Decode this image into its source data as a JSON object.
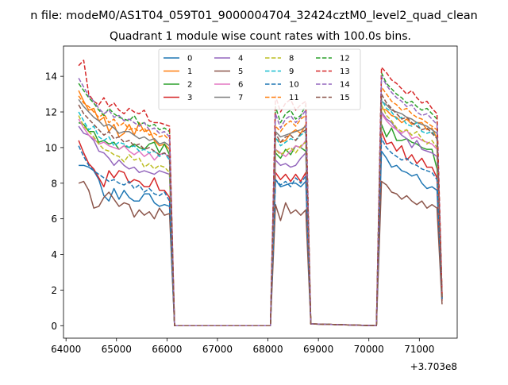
{
  "chart_data": {
    "type": "line",
    "suptitle": "n file: modeM0/AS1T04_059T01_9000004704_32424cztM0_level2_quad_clean",
    "title": "Quadrant 1 module wise count rates with 100.0s bins.",
    "xlabel": "",
    "ylabel": "",
    "x_offset_label": "+3.703e8",
    "xlim": [
      63950,
      71750
    ],
    "ylim": [
      -0.7,
      15.7
    ],
    "x_ticks": [
      64000,
      65000,
      66000,
      67000,
      68000,
      69000,
      70000,
      71000
    ],
    "x_tick_labels": [
      "64000",
      "65000",
      "66000",
      "67000",
      "68000",
      "69000",
      "70000",
      "71000"
    ],
    "y_ticks": [
      0,
      2,
      4,
      6,
      8,
      10,
      12,
      14
    ],
    "y_tick_labels": [
      "0",
      "2",
      "4",
      "6",
      "8",
      "10",
      "12",
      "14"
    ],
    "legend_position": "upper center",
    "segments": {
      "seg1": {
        "start": 64250,
        "end": 66050,
        "step": 100
      },
      "seg2": {
        "start": 68150,
        "end": 68750,
        "step": 100
      },
      "seg3": {
        "start": 70250,
        "end": 71350,
        "step": 100
      },
      "gaps": [
        {
          "x": [
            66150,
            68050
          ],
          "y": [
            0,
            0
          ]
        },
        {
          "x": [
            68850,
            70150
          ],
          "y": [
            0.1,
            0
          ]
        }
      ],
      "tail_x": 71450
    },
    "series": [
      {
        "name": "0",
        "style": "solid",
        "color": "#1f77b4",
        "seg1": [
          9.0,
          9.0,
          8.9,
          8.7,
          8.2,
          7.3,
          7.0,
          7.7,
          7.1,
          7.6,
          7.2,
          7.0,
          7.0,
          7.4,
          7.4,
          6.9,
          6.7,
          6.8,
          6.7
        ],
        "seg2": [
          8.2,
          7.8,
          7.9,
          8.0,
          8.0,
          7.8,
          8.1
        ],
        "seg3": [
          9.8,
          9.4,
          8.9,
          9.0,
          8.7,
          8.6,
          8.4,
          8.5,
          8.0,
          7.7,
          7.8,
          7.6
        ],
        "tail": 1.5
      },
      {
        "name": "1",
        "style": "solid",
        "color": "#ff7f0e",
        "seg1": [
          13.2,
          12.6,
          12.1,
          12.2,
          11.5,
          11.7,
          10.9,
          11.3,
          10.6,
          10.8,
          11.3,
          10.7,
          11.4,
          10.9,
          11.0,
          10.4,
          10.1,
          10.2,
          9.9
        ],
        "seg2": [
          10.5,
          10.3,
          10.4,
          10.8,
          11.0,
          10.8,
          11.3
        ],
        "seg3": [
          12.2,
          12.1,
          11.8,
          11.7,
          11.4,
          11.6,
          11.3,
          11.4,
          11.4,
          11.0,
          11.1,
          10.5
        ],
        "tail": 1.6
      },
      {
        "name": "2",
        "style": "solid",
        "color": "#2ca02c",
        "seg1": [
          11.4,
          11.3,
          10.9,
          10.9,
          10.3,
          10.4,
          10.2,
          10.3,
          9.9,
          10.1,
          10.0,
          10.2,
          10.0,
          9.9,
          10.2,
          10.3,
          9.7,
          10.2,
          9.6
        ],
        "seg2": [
          9.7,
          9.4,
          9.9,
          9.6,
          10.1,
          10.0,
          9.8
        ],
        "seg3": [
          11.3,
          10.6,
          11.1,
          10.4,
          10.4,
          10.5,
          10.3,
          10.2,
          10.0,
          9.9,
          9.9,
          8.8
        ],
        "tail": 1.5
      },
      {
        "name": "3",
        "style": "solid",
        "color": "#d62728",
        "seg1": [
          10.4,
          9.7,
          9.1,
          8.8,
          8.3,
          7.8,
          8.7,
          8.3,
          8.7,
          8.6,
          8.0,
          8.2,
          8.1,
          7.8,
          7.8,
          8.3,
          7.6,
          7.6,
          7.2
        ],
        "seg2": [
          8.6,
          8.2,
          8.5,
          8.1,
          8.5,
          8.1,
          8.6
        ],
        "seg3": [
          10.9,
          10.2,
          10.3,
          9.8,
          10.1,
          9.3,
          9.6,
          9.1,
          9.4,
          8.9,
          8.9,
          8.3
        ],
        "tail": 1.4
      },
      {
        "name": "4",
        "style": "solid",
        "color": "#9467bd",
        "seg1": [
          11.2,
          10.8,
          10.7,
          10.4,
          9.8,
          9.7,
          9.4,
          9.0,
          9.3,
          9.0,
          8.8,
          8.9,
          8.6,
          8.7,
          8.6,
          8.5,
          8.7,
          8.6,
          8.5
        ],
        "seg2": [
          9.3,
          9.0,
          9.1,
          8.9,
          9.0,
          9.4,
          9.7
        ],
        "seg3": [
          12.0,
          11.6,
          11.4,
          11.0,
          10.7,
          10.5,
          10.0,
          10.4,
          9.9,
          9.8,
          9.7,
          9.5
        ],
        "tail": 1.5
      },
      {
        "name": "5",
        "style": "solid",
        "color": "#8c564b",
        "seg1": [
          8.0,
          8.1,
          7.6,
          6.6,
          6.7,
          7.2,
          7.5,
          7.1,
          6.7,
          6.9,
          6.8,
          6.1,
          6.5,
          6.2,
          6.4,
          6.0,
          6.6,
          6.2,
          6.3
        ],
        "seg2": [
          6.8,
          5.9,
          6.9,
          6.3,
          6.5,
          6.2,
          6.5
        ],
        "seg3": [
          8.1,
          7.9,
          7.5,
          7.4,
          7.1,
          7.3,
          7.0,
          6.8,
          7.0,
          6.6,
          6.8,
          6.6
        ],
        "tail": 1.2
      },
      {
        "name": "6",
        "style": "solid",
        "color": "#e377c2",
        "seg1": [
          11.6,
          11.1,
          10.7,
          10.5,
          10.2,
          10.3,
          10.1,
          10.0,
          9.9,
          10.1,
          9.8,
          9.6,
          9.8,
          9.5,
          9.7,
          9.3,
          9.6,
          9.7,
          9.4
        ],
        "seg2": [
          9.9,
          9.7,
          9.5,
          9.8,
          10.1,
          10.0,
          10.4
        ],
        "seg3": [
          11.9,
          11.5,
          11.2,
          11.0,
          10.8,
          11.0,
          10.5,
          10.6,
          10.4,
          10.3,
          10.2,
          9.9
        ],
        "tail": 1.5
      },
      {
        "name": "7",
        "style": "solid",
        "color": "#7f7f7f",
        "seg1": [
          12.7,
          12.3,
          12.0,
          11.7,
          11.5,
          11.2,
          11.3,
          11.1,
          10.8,
          10.9,
          10.9,
          10.7,
          10.5,
          10.6,
          10.4,
          10.5,
          10.2,
          10.3,
          10.1
        ],
        "seg2": [
          10.9,
          10.6,
          10.7,
          10.8,
          10.9,
          11.0,
          11.2
        ],
        "seg3": [
          12.6,
          12.4,
          12.1,
          12.0,
          11.9,
          11.7,
          11.6,
          11.4,
          11.3,
          11.2,
          11.0,
          10.8
        ],
        "tail": 1.6
      },
      {
        "name": "8",
        "style": "dashed",
        "color": "#bcbd22",
        "seg1": [
          11.8,
          11.2,
          10.9,
          10.6,
          10.2,
          9.9,
          9.8,
          9.6,
          9.5,
          9.2,
          9.6,
          9.3,
          9.4,
          8.9,
          9.1,
          8.8,
          9.0,
          8.9,
          8.6
        ],
        "seg2": [
          9.9,
          9.6,
          9.8,
          10.0,
          9.7,
          10.1,
          10.3
        ],
        "seg3": [
          12.4,
          11.8,
          11.5,
          11.1,
          10.9,
          11.0,
          10.7,
          10.9,
          10.5,
          10.2,
          10.4,
          10.0
        ],
        "tail": 1.6
      },
      {
        "name": "9",
        "style": "dashed",
        "color": "#17becf",
        "seg1": [
          12.0,
          11.5,
          11.0,
          11.2,
          10.6,
          10.4,
          10.6,
          10.1,
          10.3,
          10.2,
          10.0,
          10.1,
          9.8,
          9.9,
          9.7,
          9.8,
          9.5,
          9.7,
          9.3
        ],
        "seg2": [
          10.6,
          10.1,
          10.3,
          10.5,
          10.4,
          10.7,
          10.9
        ],
        "seg3": [
          12.7,
          12.2,
          12.0,
          11.6,
          11.7,
          11.3,
          11.2,
          11.4,
          10.9,
          10.8,
          10.9,
          10.5
        ],
        "tail": 1.6
      },
      {
        "name": "10",
        "style": "dashed",
        "color": "#1f77b4",
        "seg1": [
          10.1,
          9.5,
          9.0,
          8.7,
          8.5,
          8.3,
          8.1,
          8.2,
          8.0,
          7.9,
          8.1,
          7.7,
          7.9,
          7.5,
          7.7,
          7.4,
          7.3,
          7.5,
          7.0
        ],
        "seg2": [
          8.2,
          7.9,
          8.1,
          7.8,
          8.3,
          8.0,
          8.4
        ],
        "seg3": [
          10.5,
          10.0,
          9.7,
          9.5,
          9.3,
          9.4,
          9.1,
          9.0,
          8.8,
          8.7,
          8.6,
          8.2
        ],
        "tail": 1.5
      },
      {
        "name": "11",
        "style": "dashed",
        "color": "#ff7f0e",
        "seg1": [
          12.9,
          12.5,
          12.3,
          12.0,
          11.7,
          11.9,
          11.4,
          11.6,
          11.2,
          11.4,
          11.0,
          11.1,
          10.9,
          11.1,
          10.7,
          10.8,
          10.6,
          10.7,
          10.4
        ],
        "seg2": [
          11.2,
          10.9,
          11.3,
          11.5,
          11.2,
          11.6,
          11.8
        ],
        "seg3": [
          13.4,
          13.0,
          12.6,
          12.4,
          12.1,
          12.2,
          11.9,
          11.7,
          11.6,
          11.4,
          11.2,
          11.0
        ],
        "tail": 1.7
      },
      {
        "name": "12",
        "style": "dashed",
        "color": "#2ca02c",
        "seg1": [
          13.6,
          13.2,
          12.8,
          12.5,
          12.1,
          11.8,
          12.2,
          11.9,
          11.7,
          11.6,
          11.5,
          11.8,
          11.3,
          11.4,
          11.2,
          11.3,
          11.0,
          11.1,
          10.9
        ],
        "seg2": [
          12.3,
          11.4,
          11.9,
          12.1,
          11.6,
          11.8,
          12.4
        ],
        "seg3": [
          14.2,
          13.6,
          13.3,
          13.0,
          12.8,
          12.5,
          12.6,
          12.3,
          12.1,
          12.2,
          11.9,
          11.6
        ],
        "tail": 1.7
      },
      {
        "name": "13",
        "style": "dashed",
        "color": "#d62728",
        "seg1": [
          14.6,
          14.9,
          13.0,
          12.6,
          12.4,
          12.8,
          12.3,
          12.5,
          12.1,
          11.9,
          12.2,
          12.0,
          11.9,
          12.1,
          11.5,
          11.4,
          11.4,
          11.3,
          11.2
        ],
        "seg2": [
          12.9,
          12.0,
          12.5,
          12.7,
          12.1,
          12.4,
          12.6
        ],
        "seg3": [
          14.5,
          14.2,
          13.8,
          13.6,
          13.3,
          13.0,
          13.2,
          12.8,
          12.5,
          12.6,
          12.2,
          11.9
        ],
        "tail": 1.8
      },
      {
        "name": "14",
        "style": "dashed",
        "color": "#9467bd",
        "seg1": [
          13.9,
          13.4,
          12.9,
          12.6,
          12.2,
          11.9,
          12.1,
          11.7,
          11.8,
          11.5,
          11.6,
          11.4,
          11.2,
          11.4,
          11.0,
          11.1,
          10.8,
          10.9,
          10.6
        ],
        "seg2": [
          11.9,
          11.1,
          11.6,
          11.8,
          11.4,
          11.7,
          12.1
        ],
        "seg3": [
          14.0,
          13.5,
          13.1,
          12.8,
          12.6,
          12.3,
          12.4,
          12.0,
          11.8,
          11.9,
          11.6,
          11.3
        ],
        "tail": 1.7
      },
      {
        "name": "15",
        "style": "dashed",
        "color": "#8c564b",
        "seg1": [
          12.4,
          11.9,
          11.6,
          11.3,
          11.0,
          10.7,
          10.9,
          10.5,
          10.6,
          10.3,
          10.4,
          10.1,
          10.2,
          9.9,
          10.0,
          9.8,
          9.6,
          9.7,
          9.5
        ],
        "seg2": [
          10.8,
          10.3,
          10.6,
          10.7,
          10.4,
          10.8,
          11.0
        ],
        "seg3": [
          13.0,
          12.5,
          12.2,
          11.9,
          11.6,
          11.7,
          11.4,
          11.2,
          11.0,
          11.1,
          10.8,
          10.5
        ],
        "tail": 1.6
      }
    ]
  }
}
